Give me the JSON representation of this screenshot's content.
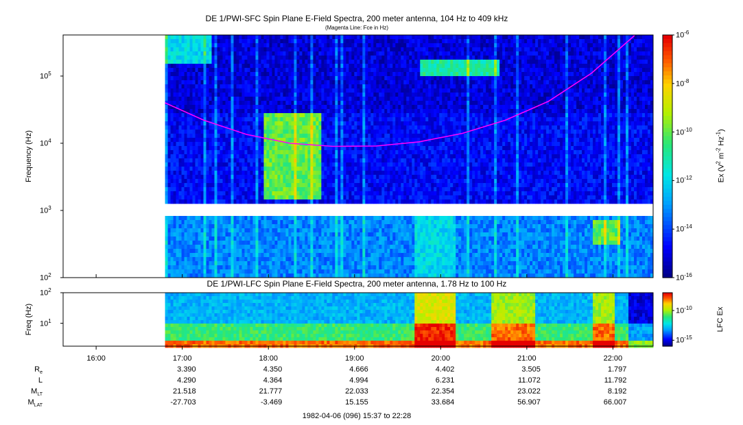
{
  "chart_data": [
    {
      "type": "heatmap",
      "title": "DE 1/PWI-SFC  Spin Plane E-Field Spectra, 200 meter antenna, 104 Hz to 409 kHz",
      "subtitle": "(Magenta Line: Fce in Hz)",
      "ylabel": "Frequency (Hz)",
      "yscale": "log",
      "ylim": [
        100,
        409000
      ],
      "yticks": [
        {
          "base": "10",
          "exp": "2"
        },
        {
          "base": "10",
          "exp": "3"
        },
        {
          "base": "10",
          "exp": "4"
        },
        {
          "base": "10",
          "exp": "5"
        }
      ],
      "colorbar": {
        "label": "Ex (V² m⁻² Hz⁻¹)",
        "label_parts": {
          "pre": "Ex (V",
          "e1": "2",
          "mid": " m",
          "e2": "-2",
          "mid2": " Hz",
          "e3": "-1",
          "post": ")"
        },
        "scale": "log",
        "range": [
          1e-16,
          1e-06
        ],
        "ticks": [
          {
            "base": "10",
            "exp": "-6"
          },
          {
            "base": "10",
            "exp": "-8"
          },
          {
            "base": "10",
            "exp": "-10"
          },
          {
            "base": "10",
            "exp": "-12"
          },
          {
            "base": "10",
            "exp": "-14"
          },
          {
            "base": "10",
            "exp": "-16"
          }
        ]
      },
      "data_gap": {
        "freq_hz": [
          900,
          1100
        ]
      },
      "no_data_before": "16:48",
      "fce_line": {
        "color": "#ff00ff",
        "points": [
          {
            "t": "16:48",
            "f": 40000
          },
          {
            "t": "17:15",
            "f": 22000
          },
          {
            "t": "17:45",
            "f": 13500
          },
          {
            "t": "18:15",
            "f": 10000
          },
          {
            "t": "18:45",
            "f": 9000
          },
          {
            "t": "19:15",
            "f": 9100
          },
          {
            "t": "19:45",
            "f": 10500
          },
          {
            "t": "20:15",
            "f": 14000
          },
          {
            "t": "20:45",
            "f": 22000
          },
          {
            "t": "21:15",
            "f": 42000
          },
          {
            "t": "21:45",
            "f": 110000
          },
          {
            "t": "22:15",
            "f": 400000
          }
        ]
      },
      "features": [
        {
          "t_start": "16:48",
          "t_end": "17:20",
          "f_low": 150000,
          "f_high": 409000,
          "level": -12
        },
        {
          "t_start": "17:55",
          "t_end": "18:35",
          "f_low": 1500,
          "f_high": 30000,
          "level": -10
        },
        {
          "t_start": "19:45",
          "t_end": "20:40",
          "f_low": 100000,
          "f_high": 180000,
          "level": -11
        },
        {
          "t_start": "19:40",
          "t_end": "20:10",
          "f_low": 100,
          "f_high": 900,
          "level": -12
        },
        {
          "t_start": "21:45",
          "t_end": "22:05",
          "f_low": 300,
          "f_high": 700,
          "level": -10
        }
      ]
    },
    {
      "type": "heatmap",
      "title": "DE 1/PWI-LFC  Spin Plane E-Field Spectra, 200 meter antenna, 1.78 Hz to 100 Hz",
      "ylabel": "Freq (Hz)",
      "yscale": "log",
      "ylim": [
        1.78,
        100
      ],
      "yticks": [
        {
          "base": "10",
          "exp": "1"
        },
        {
          "base": "10",
          "exp": "2"
        }
      ],
      "colorbar": {
        "label": "LFC Ex",
        "scale": "log",
        "range": [
          1e-16,
          1e-07
        ],
        "ticks": [
          {
            "base": "10",
            "exp": "-10"
          },
          {
            "base": "10",
            "exp": "-15"
          }
        ]
      },
      "no_data_before": "16:48",
      "bands": [
        {
          "f_low": 1.78,
          "f_high": 3,
          "level": -8
        },
        {
          "f_low": 3,
          "f_high": 10,
          "level": -11
        },
        {
          "f_low": 10,
          "f_high": 100,
          "level": -13
        }
      ],
      "enhanced_intervals": [
        {
          "t_start": "19:40",
          "t_end": "20:10",
          "level": -7
        },
        {
          "t_start": "20:35",
          "t_end": "21:05",
          "level": -8
        },
        {
          "t_start": "21:45",
          "t_end": "22:00",
          "level": -8
        }
      ]
    }
  ],
  "x_axis": {
    "range": [
      "15:37",
      "22:28"
    ],
    "ticks": [
      "16:00",
      "17:00",
      "18:00",
      "19:00",
      "20:00",
      "21:00",
      "22:00"
    ]
  },
  "ephemeris": {
    "rows": [
      {
        "label": "R",
        "sub": "e",
        "values": [
          "3.390",
          "4.350",
          "4.666",
          "4.402",
          "3.505",
          "1.797"
        ]
      },
      {
        "label": "L",
        "sub": "",
        "values": [
          "4.290",
          "4.364",
          "4.994",
          "6.231",
          "11.072",
          "11.792"
        ]
      },
      {
        "label": "M",
        "sub": "LT",
        "values": [
          "21.518",
          "21.777",
          "22.033",
          "22.354",
          "23.022",
          "8.192"
        ]
      },
      {
        "label": "M",
        "sub": "LAT",
        "values": [
          "-27.703",
          "-3.469",
          "15.155",
          "33.684",
          "56.907",
          "66.007"
        ]
      }
    ]
  },
  "footer": "1982-04-06 (096) 15:37 to 22:28"
}
